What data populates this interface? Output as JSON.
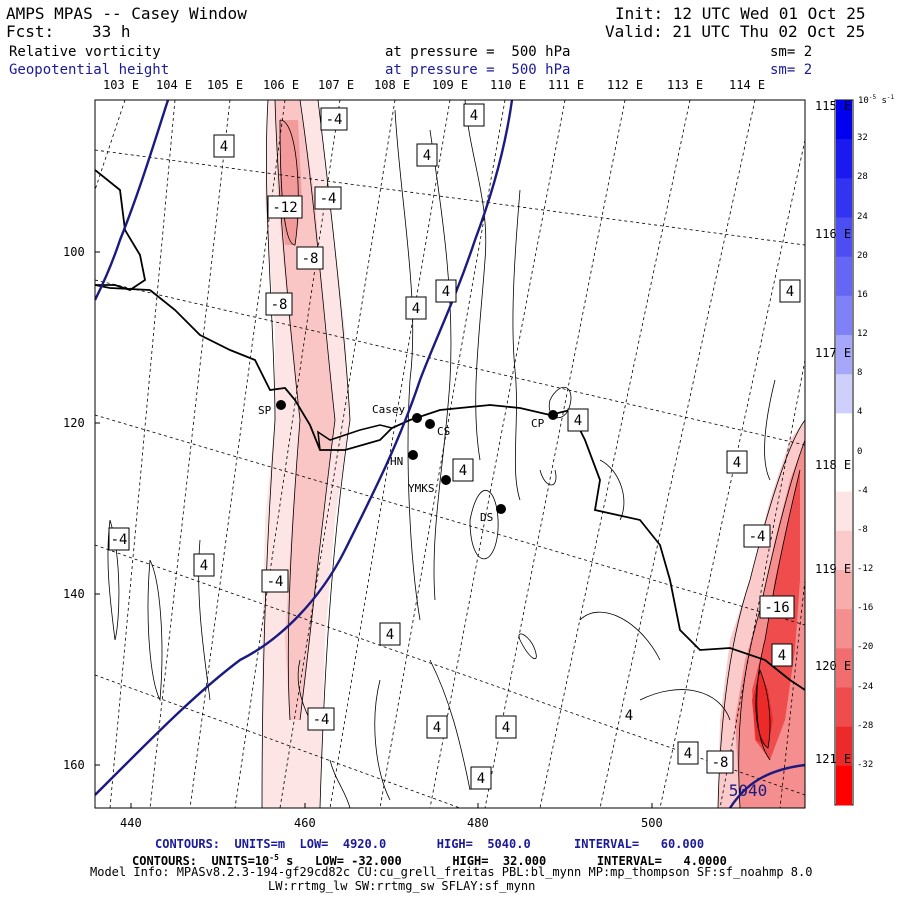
{
  "header": {
    "title": "AMPS MPAS -- Casey Window",
    "forecast_label": "Fcst:",
    "forecast_value": "33 h",
    "init": "Init: 12 UTC Wed 01 Oct 25",
    "valid": "Valid: 21 UTC Thu 02 Oct 25",
    "field1": "Relative vorticity",
    "field1_level": "at pressure =  500 hPa",
    "field1_sm": "sm= 2",
    "field2": "Geopotential height",
    "field2_level": "at pressure =  500 hPa",
    "field2_sm": "sm= 2"
  },
  "top_lon_labels": [
    "103 E",
    "104 E",
    "105 E",
    "106 E",
    "107 E",
    "108 E",
    "109 E",
    "110 E",
    "111 E",
    "112 E",
    "113 E",
    "114 E"
  ],
  "right_lon_labels": [
    "115 E",
    "116 E",
    "117 E",
    "118 E",
    "119 E",
    "120 E",
    "121 E"
  ],
  "y_ticks": [
    "100",
    "120",
    "140",
    "160"
  ],
  "x_ticks": [
    "440",
    "460",
    "480",
    "500"
  ],
  "stations": [
    {
      "name": "SP"
    },
    {
      "name": "Casey"
    },
    {
      "name": "CS"
    },
    {
      "name": "HN"
    },
    {
      "name": "YMKS"
    },
    {
      "name": "CP"
    },
    {
      "name": "DS"
    }
  ],
  "contour_labels": [
    "4",
    "-4",
    "4",
    "4",
    "-12",
    "-4",
    "-8",
    "4",
    "-8",
    "4",
    "4",
    "4",
    "4",
    "4",
    "-4",
    "4",
    "-4",
    "-16",
    "-4",
    "4",
    "4",
    "-4",
    "4",
    "4",
    "4",
    "4",
    "-8",
    "5040",
    "-4",
    "4",
    "4"
  ],
  "colorbar": {
    "units_top": "10",
    "units_exp": "-5",
    "units_s": "s",
    "units_sexp": "-1",
    "levels": [
      "32",
      "28",
      "24",
      "20",
      "16",
      "12",
      "8",
      "4",
      "0",
      "-4",
      "-8",
      "-12",
      "-16",
      "-20",
      "-24",
      "-28",
      "-32"
    ],
    "colors": [
      "#0000ee",
      "#1a1af0",
      "#3333f2",
      "#4d4df4",
      "#6666f6",
      "#8080f8",
      "#a6a6fa",
      "#cfcffc",
      "#ffffff",
      "#ffffff",
      "#fde5e5",
      "#fbcbcb",
      "#f8adad",
      "#f58f8f",
      "#f26e6e",
      "#ef4d4d",
      "#ec2a2a",
      "#ff0000"
    ]
  },
  "footer": {
    "line1": "CONTOURS:  UNITS=m  LOW=  4920.0       HIGH=  5040.0      INTERVAL=   60.000",
    "line2": "CONTOURS:  UNITS=10",
    "line2_rest": "s   LOW= -32.000       HIGH=  32.000       INTERVAL=   4.0000",
    "line3": "Model Info: MPASv8.2.3-194-gf29cd82c CU:cu_grell_freitas PBL:bl_mynn MP:mp_thompson SF:sf_noahmp 8.0",
    "line4": "LW:rrtmg_lw SW:rrtmg_sw SFLAY:sf_mynn"
  },
  "colors": {
    "height_contour": "#1a1a80",
    "text_blue": "#1a1a9a"
  }
}
